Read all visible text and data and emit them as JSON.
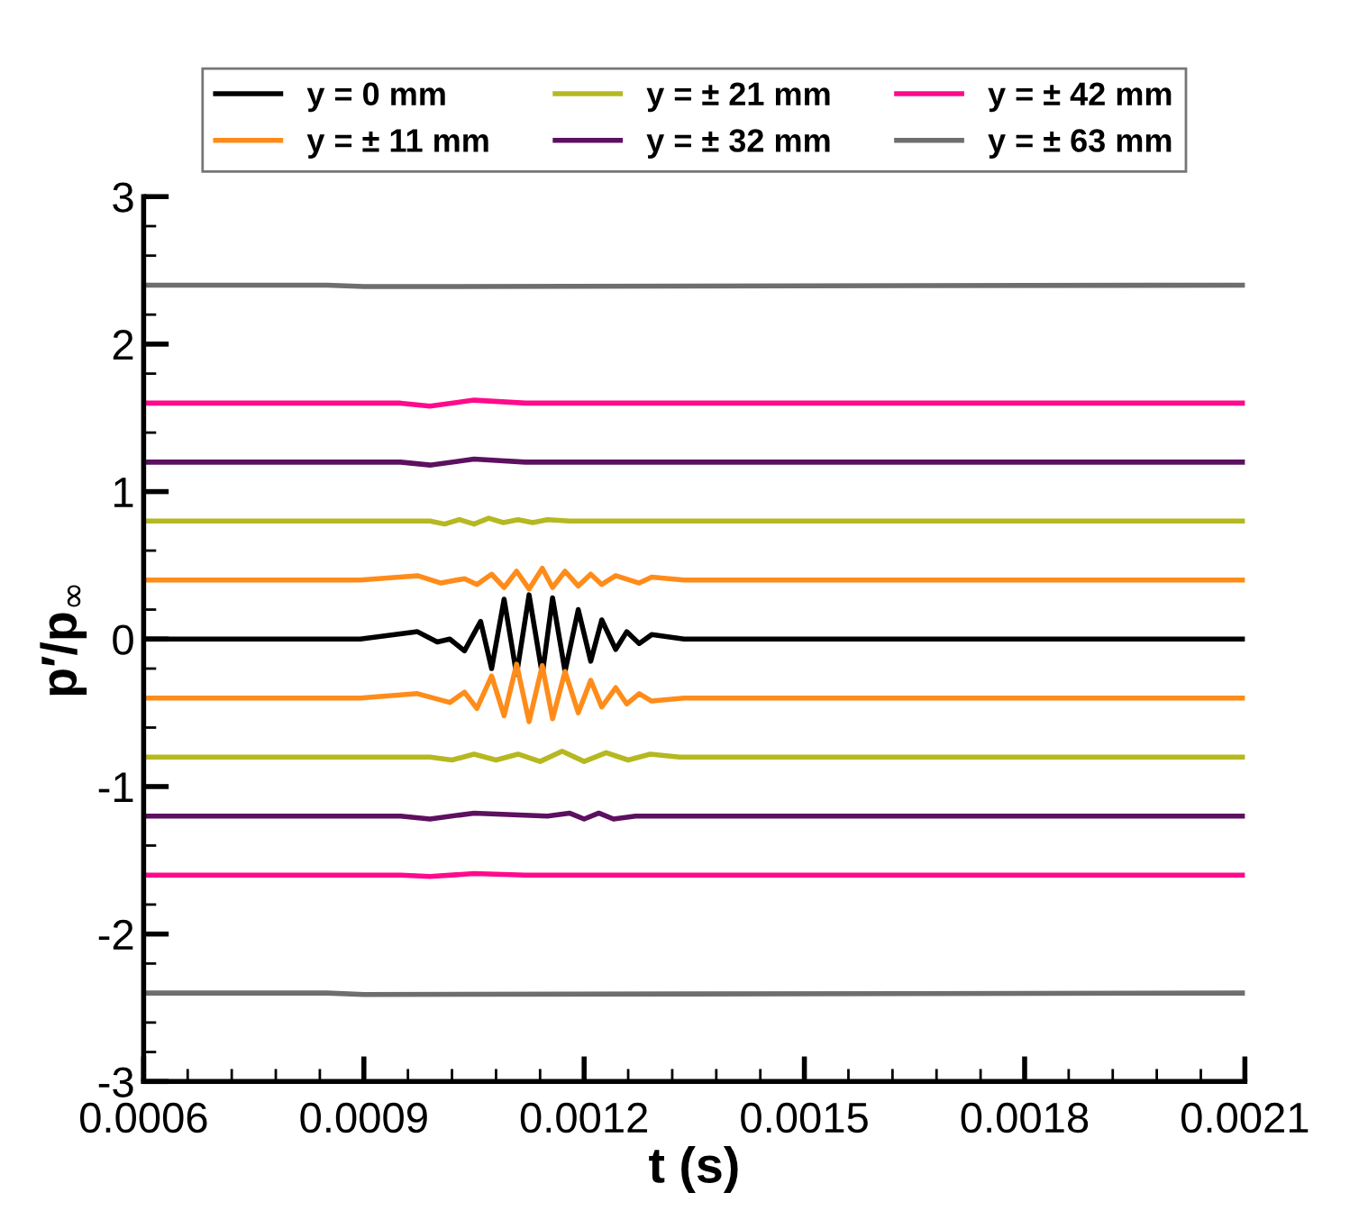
{
  "chart_data": {
    "type": "line",
    "xlabel": "t (s)",
    "ylabel": "p′/p$_{∞}$",
    "xlim": [
      0.0006,
      0.0021
    ],
    "xticks": [
      {
        "value": 0.0006,
        "label": "0.0006"
      },
      {
        "value": 0.0009,
        "label": "0.0009"
      },
      {
        "value": 0.0012,
        "label": "0.0012"
      },
      {
        "value": 0.0015,
        "label": "0.0015"
      },
      {
        "value": 0.0018,
        "label": "0.0018"
      },
      {
        "value": 0.0021,
        "label": "0.0021"
      }
    ],
    "ylim": [
      -3,
      3
    ],
    "yticks": [
      -3,
      -2,
      -1,
      0,
      1,
      2,
      3
    ],
    "grid": false,
    "legend": "top",
    "marker": "none",
    "line_style": "solid",
    "series": [
      {
        "name": "y = 0 mm",
        "color": "#000000",
        "x": [
          0.0006,
          0.000895,
          0.000973,
          0.001,
          0.001017,
          0.001037,
          0.001059,
          0.001074,
          0.001091,
          0.001108,
          0.001125,
          0.001143,
          0.001157,
          0.001174,
          0.001192,
          0.001209,
          0.001224,
          0.001243,
          0.001258,
          0.001275,
          0.001292,
          0.001336,
          0.0021
        ],
        "values": [
          0,
          0,
          0.05,
          -0.02,
          0,
          -0.08,
          0.12,
          -0.2,
          0.27,
          -0.24,
          0.3,
          -0.24,
          0.28,
          -0.22,
          0.2,
          -0.15,
          0.13,
          -0.07,
          0.05,
          -0.03,
          0.03,
          0,
          0
        ]
      },
      {
        "name": "y = ± 11 mm",
        "color": "#ff8c1a",
        "x": [
          0.0006,
          0.000895,
          0.000973,
          0.001005,
          0.001037,
          0.001054,
          0.001074,
          0.001091,
          0.001108,
          0.001125,
          0.001143,
          0.001157,
          0.001174,
          0.001192,
          0.001209,
          0.001224,
          0.001243,
          0.001275,
          0.001292,
          0.001336,
          0.0021
        ],
        "values": [
          0.4,
          0.4,
          0.43,
          0.38,
          0.41,
          0.37,
          0.44,
          0.35,
          0.46,
          0.34,
          0.48,
          0.35,
          0.46,
          0.36,
          0.44,
          0.37,
          0.43,
          0.38,
          0.42,
          0.4,
          0.4
        ]
      },
      {
        "color": "#ff8c1a",
        "x": [
          0.0006,
          0.000895,
          0.000973,
          0.001017,
          0.001037,
          0.001054,
          0.001074,
          0.001091,
          0.001108,
          0.001125,
          0.001143,
          0.001157,
          0.001174,
          0.001192,
          0.001209,
          0.001224,
          0.001243,
          0.001258,
          0.001275,
          0.001292,
          0.001336,
          0.0021
        ],
        "values": [
          -0.4,
          -0.4,
          -0.37,
          -0.43,
          -0.36,
          -0.47,
          -0.25,
          -0.52,
          -0.17,
          -0.56,
          -0.18,
          -0.54,
          -0.22,
          -0.5,
          -0.28,
          -0.46,
          -0.33,
          -0.44,
          -0.37,
          -0.42,
          -0.4,
          -0.4
        ]
      },
      {
        "name": "y = ± 21 mm",
        "color": "#b5b820",
        "x": [
          0.0006,
          0.00099,
          0.00101,
          0.00103,
          0.00105,
          0.00107,
          0.00109,
          0.00111,
          0.00113,
          0.00115,
          0.00118,
          0.0021
        ],
        "values": [
          0.8,
          0.8,
          0.78,
          0.81,
          0.78,
          0.82,
          0.79,
          0.81,
          0.79,
          0.81,
          0.8,
          0.8
        ]
      },
      {
        "color": "#b5b820",
        "x": [
          0.0006,
          0.00099,
          0.00102,
          0.00105,
          0.00108,
          0.00111,
          0.00114,
          0.00117,
          0.0012,
          0.00123,
          0.00126,
          0.00129,
          0.00133,
          0.0021
        ],
        "values": [
          -0.8,
          -0.8,
          -0.82,
          -0.78,
          -0.82,
          -0.78,
          -0.83,
          -0.76,
          -0.83,
          -0.77,
          -0.82,
          -0.78,
          -0.8,
          -0.8
        ]
      },
      {
        "name": "y = ± 32 mm",
        "color": "#5c1060",
        "x": [
          0.0006,
          0.00095,
          0.00099,
          0.00105,
          0.00112,
          0.0021
        ],
        "values": [
          1.2,
          1.2,
          1.18,
          1.22,
          1.2,
          1.2
        ]
      },
      {
        "color": "#5c1060",
        "x": [
          0.0006,
          0.00095,
          0.00099,
          0.00105,
          0.00115,
          0.00118,
          0.0012,
          0.00122,
          0.00124,
          0.00127,
          0.0021
        ],
        "values": [
          -1.2,
          -1.2,
          -1.22,
          -1.18,
          -1.2,
          -1.18,
          -1.22,
          -1.18,
          -1.22,
          -1.2,
          -1.2
        ]
      },
      {
        "name": "y = ± 42 mm",
        "color": "#ff0a8c",
        "x": [
          0.0006,
          0.00095,
          0.00099,
          0.00105,
          0.00112,
          0.0021
        ],
        "values": [
          1.6,
          1.6,
          1.58,
          1.62,
          1.6,
          1.6
        ]
      },
      {
        "color": "#ff0a8c",
        "x": [
          0.0006,
          0.00095,
          0.00099,
          0.00105,
          0.00112,
          0.0021
        ],
        "values": [
          -1.6,
          -1.6,
          -1.61,
          -1.59,
          -1.6,
          -1.6
        ]
      },
      {
        "name": "y = ± 63 mm",
        "color": "#6e6e6e",
        "x": [
          0.0006,
          0.00085,
          0.0009,
          0.0021
        ],
        "values": [
          2.4,
          2.4,
          2.39,
          2.4
        ]
      },
      {
        "color": "#6e6e6e",
        "x": [
          0.0006,
          0.00085,
          0.0009,
          0.0021
        ],
        "values": [
          -2.4,
          -2.4,
          -2.41,
          -2.4
        ]
      }
    ]
  }
}
